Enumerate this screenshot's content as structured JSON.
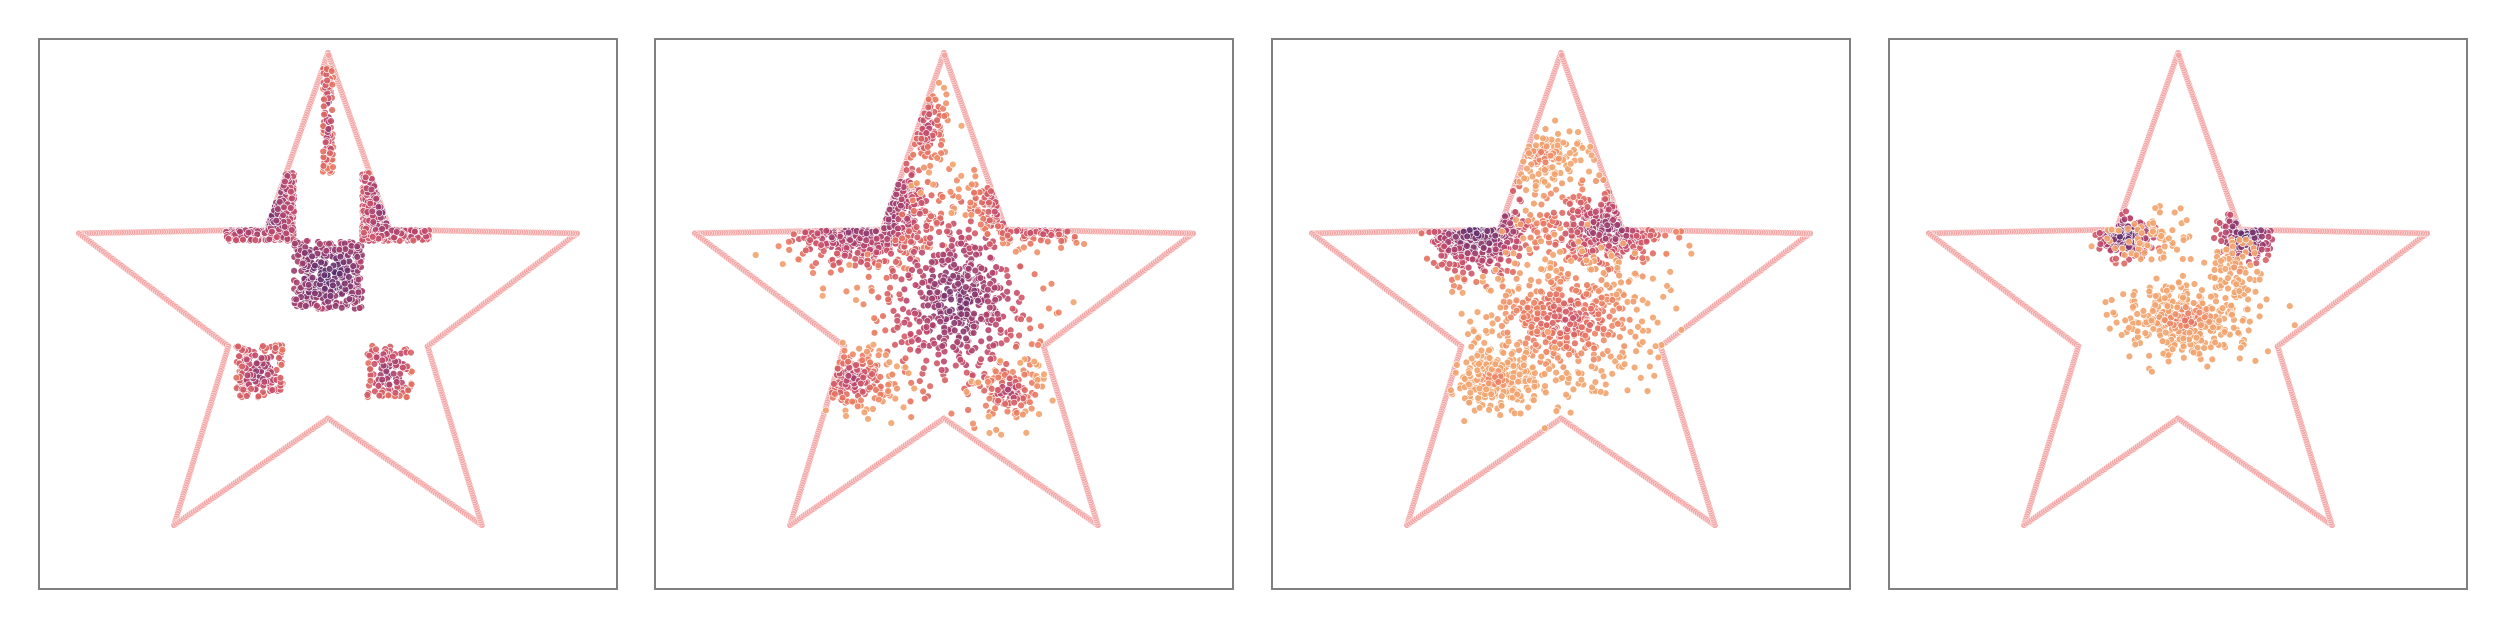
{
  "figure": {
    "panel_count": 4
  },
  "chart_data": [
    {
      "type": "scatter",
      "title": "",
      "xlabel": "",
      "ylabel": "",
      "xlim": [
        -1.1,
        1.1
      ],
      "ylim": [
        -1.05,
        1.05
      ],
      "grid": false,
      "legend": "none",
      "boundary": {
        "shape": "star",
        "outer_radius": 1.0,
        "inner_radius": 0.4,
        "color": "#f4a6a6"
      },
      "colormap": [
        "#2b1a4f",
        "#5a2e6e",
        "#8c3a6f",
        "#c2496b",
        "#e8735f",
        "#f2a46e"
      ],
      "clusters": [
        {
          "x": [
            -0.39,
            -0.13
          ],
          "y": [
            0.28,
            0.54
          ],
          "level": 0.25,
          "n": 520
        },
        {
          "x": [
            -0.13,
            0.13
          ],
          "y": [
            0.02,
            0.28
          ],
          "level": 0.15,
          "n": 380
        },
        {
          "x": [
            0.13,
            0.39
          ],
          "y": [
            0.28,
            0.54
          ],
          "level": 0.3,
          "n": 420
        },
        {
          "x": [
            -0.02,
            0.02
          ],
          "y": [
            0.54,
            0.95
          ],
          "level": 0.45,
          "n": 110
        },
        {
          "x": [
            -0.35,
            -0.17
          ],
          "y": [
            -0.32,
            -0.12
          ],
          "level": 0.4,
          "n": 170
        },
        {
          "x": [
            0.15,
            0.32
          ],
          "y": [
            -0.32,
            -0.12
          ],
          "level": 0.4,
          "n": 120
        }
      ]
    },
    {
      "type": "scatter",
      "title": "",
      "xlabel": "",
      "ylabel": "",
      "xlim": [
        -1.1,
        1.1
      ],
      "ylim": [
        -1.05,
        1.05
      ],
      "grid": false,
      "legend": "none",
      "boundary": {
        "shape": "star",
        "outer_radius": 1.0,
        "inner_radius": 0.4,
        "color": "#f4a6a6"
      },
      "colormap": [
        "#2b1a4f",
        "#5a2e6e",
        "#8c3a6f",
        "#c2496b",
        "#e8735f",
        "#f2a46e"
      ],
      "clusters": [
        {
          "cx": -0.33,
          "cy": 0.42,
          "sx": 0.12,
          "sy": 0.1,
          "level": 0.2,
          "n": 520
        },
        {
          "cx": 0.05,
          "cy": 0.05,
          "sx": 0.14,
          "sy": 0.18,
          "level": 0.3,
          "n": 560
        },
        {
          "cx": 0.37,
          "cy": 0.42,
          "sx": 0.1,
          "sy": 0.06,
          "level": 0.25,
          "n": 260
        },
        {
          "cx": -0.35,
          "cy": -0.25,
          "sx": 0.08,
          "sy": 0.06,
          "level": 0.5,
          "n": 180
        },
        {
          "cx": 0.25,
          "cy": -0.3,
          "sx": 0.06,
          "sy": 0.05,
          "level": 0.5,
          "n": 120
        },
        {
          "cx": -0.07,
          "cy": 0.72,
          "sx": 0.06,
          "sy": 0.1,
          "level": 0.55,
          "n": 90
        }
      ]
    },
    {
      "type": "scatter",
      "title": "",
      "xlabel": "",
      "ylabel": "",
      "xlim": [
        -1.1,
        1.1
      ],
      "ylim": [
        -1.05,
        1.05
      ],
      "grid": false,
      "legend": "none",
      "boundary": {
        "shape": "star",
        "outer_radius": 1.0,
        "inner_radius": 0.4,
        "color": "#f4a6a6"
      },
      "colormap": [
        "#2b1a4f",
        "#5a2e6e",
        "#8c3a6f",
        "#c2496b",
        "#e8735f",
        "#f2a46e"
      ],
      "clusters": [
        {
          "cx": -0.32,
          "cy": 0.33,
          "sx": 0.09,
          "sy": 0.08,
          "level": 0.2,
          "n": 380
        },
        {
          "cx": 0.18,
          "cy": 0.33,
          "sx": 0.13,
          "sy": 0.08,
          "level": 0.4,
          "n": 420
        },
        {
          "cx": 0.02,
          "cy": -0.02,
          "sx": 0.18,
          "sy": 0.13,
          "level": 0.65,
          "n": 520
        },
        {
          "cx": -0.25,
          "cy": -0.25,
          "sx": 0.1,
          "sy": 0.06,
          "level": 0.85,
          "n": 260
        },
        {
          "cx": -0.07,
          "cy": 0.6,
          "sx": 0.08,
          "sy": 0.05,
          "level": 0.8,
          "n": 120
        }
      ]
    },
    {
      "type": "scatter",
      "title": "",
      "xlabel": "",
      "ylabel": "",
      "xlim": [
        -1.1,
        1.1
      ],
      "ylim": [
        -1.05,
        1.05
      ],
      "grid": false,
      "legend": "none",
      "boundary": {
        "shape": "star",
        "outer_radius": 1.0,
        "inner_radius": 0.4,
        "color": "#f4a6a6"
      },
      "colormap": [
        "#2b1a4f",
        "#5a2e6e",
        "#8c3a6f",
        "#c2496b",
        "#e8735f",
        "#f2a46e"
      ],
      "clusters": [
        {
          "cx": -0.2,
          "cy": 0.3,
          "sx": 0.05,
          "sy": 0.04,
          "level": 0.15,
          "n": 170
        },
        {
          "cx": 0.26,
          "cy": 0.3,
          "sx": 0.05,
          "sy": 0.045,
          "level": 0.15,
          "n": 170
        },
        {
          "cx": 0.03,
          "cy": -0.02,
          "sx": 0.12,
          "sy": 0.07,
          "level": 0.8,
          "n": 360
        },
        {
          "cx": -0.12,
          "cy": 0.3,
          "sx": 0.09,
          "sy": 0.05,
          "level": 0.95,
          "n": 70
        },
        {
          "cx": 0.22,
          "cy": 0.16,
          "sx": 0.05,
          "sy": 0.07,
          "level": 0.9,
          "n": 80
        }
      ]
    }
  ]
}
